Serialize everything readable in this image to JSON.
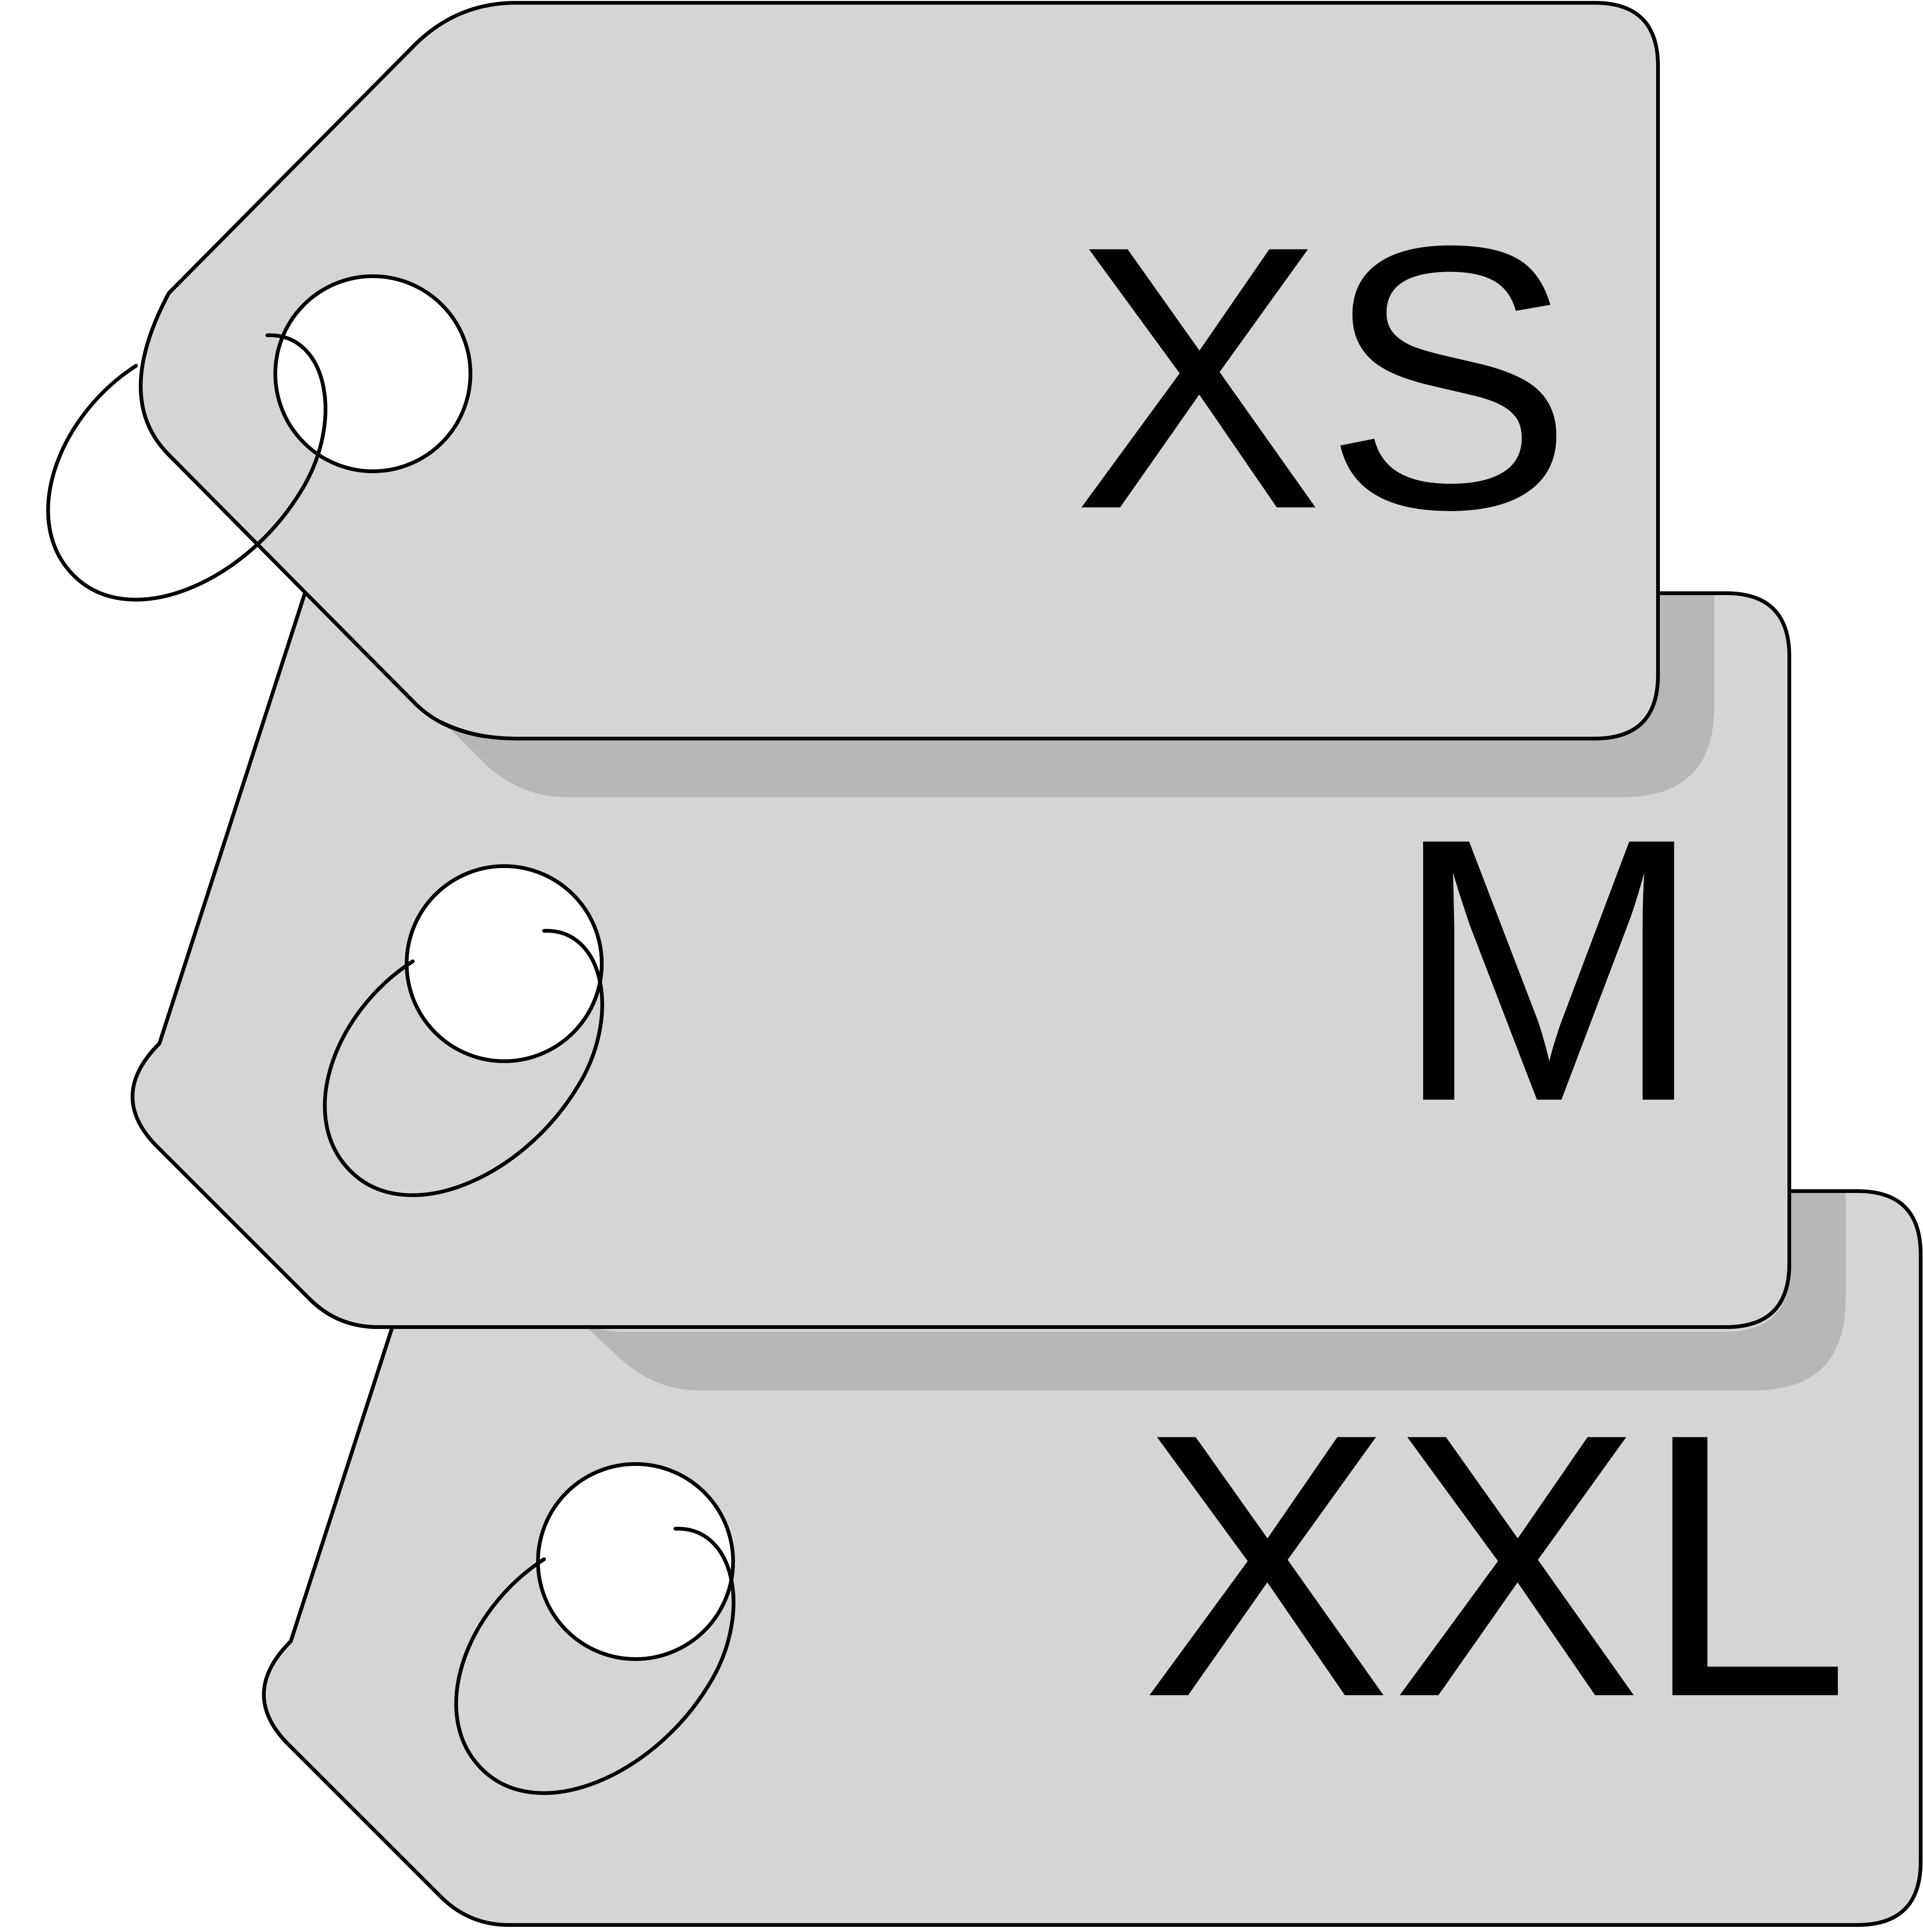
{
  "tags": [
    {
      "label": "XS"
    },
    {
      "label": "M"
    },
    {
      "label": "XXL"
    }
  ],
  "colors": {
    "tag_fill": "#d5d5d5",
    "tag_shadow": "#b7b7b7",
    "outline": "#000000",
    "hole": "#ffffff"
  },
  "icons": {
    "tag": "price-tag-icon",
    "ring": "key-ring-icon"
  }
}
